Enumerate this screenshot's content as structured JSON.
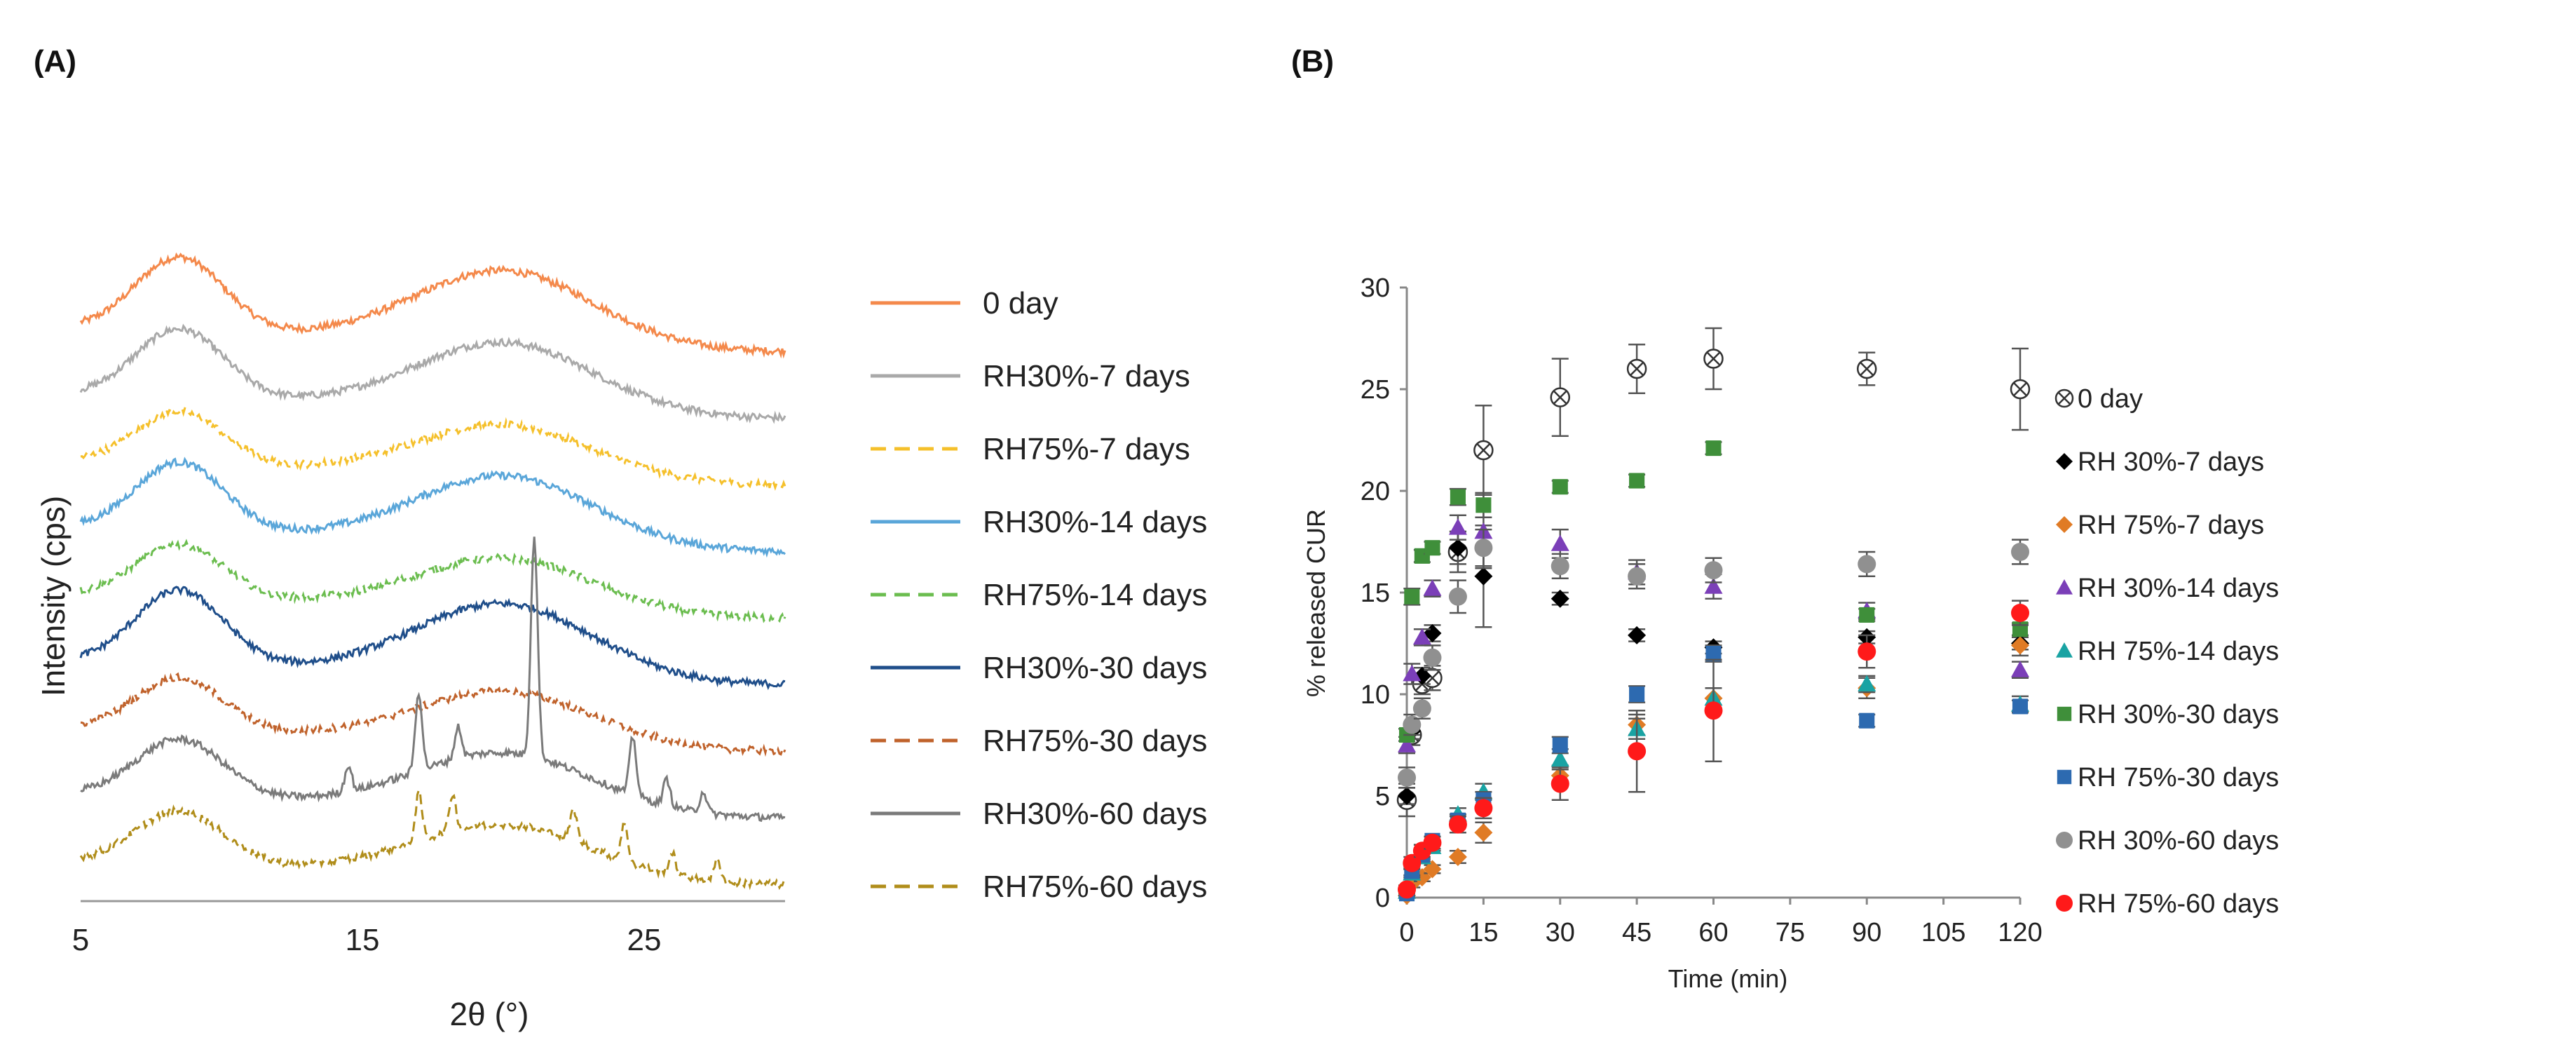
{
  "chart_data": [
    {
      "panel": "(A)",
      "type": "line",
      "title": "",
      "xlabel": "2θ (°)",
      "ylabel": "Intensity (cps)",
      "xlim": [
        5,
        30
      ],
      "x_ticks": [
        "5",
        "15",
        "25"
      ],
      "x_tick_values": [
        5,
        15,
        25
      ],
      "legend_position": "right",
      "series": [
        {
          "name": "0 day",
          "color": "#f4894b",
          "dash": "solid",
          "offset": 9,
          "amp": 0.75,
          "sharp_peaks": []
        },
        {
          "name": "RH30%-7 days",
          "color": "#a9a9a9",
          "dash": "solid",
          "offset": 8,
          "amp": 0.7,
          "sharp_peaks": []
        },
        {
          "name": "RH75%-7 days",
          "color": "#f5c02b",
          "dash": "dashed",
          "offset": 7,
          "amp": 0.55,
          "sharp_peaks": []
        },
        {
          "name": "RH30%-14 days",
          "color": "#5aa6d9",
          "dash": "solid",
          "offset": 6,
          "amp": 0.7,
          "sharp_peaks": []
        },
        {
          "name": "RH75%-14 days",
          "color": "#6bbd4f",
          "dash": "dashed",
          "offset": 5,
          "amp": 0.55,
          "sharp_peaks": []
        },
        {
          "name": "RH30%-30 days",
          "color": "#1f4e8a",
          "dash": "solid",
          "offset": 4,
          "amp": 0.75,
          "sharp_peaks": []
        },
        {
          "name": "RH75%-30 days",
          "color": "#c0622b",
          "dash": "dashed",
          "offset": 3,
          "amp": 0.55,
          "sharp_peaks": []
        },
        {
          "name": "RH30%-60 days",
          "color": "#7a7a7a",
          "dash": "solid",
          "offset": 2,
          "amp": 0.6,
          "sharp_peaks": [
            [
              14.5,
              0.25
            ],
            [
              17.0,
              0.75
            ],
            [
              18.4,
              0.3
            ],
            [
              21.1,
              2.1
            ],
            [
              24.6,
              0.55
            ],
            [
              25.8,
              0.25
            ],
            [
              27.1,
              0.2
            ]
          ]
        },
        {
          "name": "RH75%-60 days",
          "color": "#b08d1a",
          "dash": "dashed",
          "offset": 1,
          "amp": 0.55,
          "sharp_peaks": [
            [
              17.0,
              0.45
            ],
            [
              18.2,
              0.35
            ],
            [
              22.5,
              0.3
            ],
            [
              24.3,
              0.35
            ],
            [
              26.0,
              0.2
            ],
            [
              27.6,
              0.2
            ]
          ]
        }
      ]
    },
    {
      "panel": "(B)",
      "type": "scatter",
      "title": "",
      "xlabel": "Time (min)",
      "ylabel": "% released CUR",
      "xlim": [
        0,
        120
      ],
      "ylim": [
        0,
        30
      ],
      "x_ticks": [
        0,
        15,
        30,
        45,
        60,
        75,
        90,
        105,
        120
      ],
      "y_ticks": [
        0,
        5,
        10,
        15,
        20,
        25,
        30
      ],
      "grid": false,
      "legend_position": "right",
      "x": [
        0,
        1,
        3,
        5,
        10,
        15,
        30,
        45,
        60,
        90,
        120
      ],
      "series": [
        {
          "name": "0 day",
          "marker": "crossed-circle",
          "color": "#333333",
          "values": [
            4.8,
            8.0,
            10.5,
            10.8,
            17.0,
            22.0,
            24.6,
            26.0,
            26.5,
            26.0,
            25.0
          ],
          "errors": [
            0.8,
            0.5,
            0.5,
            0.6,
            1.0,
            2.2,
            1.9,
            1.2,
            1.5,
            0.8,
            2.0
          ]
        },
        {
          "name": "RH 30%-7 days",
          "marker": "diamond",
          "color": "#000000",
          "values": [
            5.0,
            8.2,
            10.9,
            13.0,
            17.2,
            15.8,
            14.7,
            12.9,
            12.3,
            12.8,
            12.5
          ],
          "errors": [
            0.4,
            0.4,
            0.4,
            0.4,
            0.8,
            2.5,
            0.3,
            0.3,
            0.3,
            0.3,
            0.3
          ]
        },
        {
          "name": "RH 75%-7 days",
          "marker": "diamond",
          "color": "#e07b25",
          "values": [
            0.1,
            0.7,
            1.0,
            1.4,
            2.0,
            3.2,
            6.0,
            8.5,
            9.8,
            10.3,
            12.4
          ],
          "errors": [
            0.1,
            0.2,
            0.2,
            0.2,
            0.3,
            0.5,
            0.5,
            0.5,
            0.5,
            0.5,
            0.5
          ]
        },
        {
          "name": "RH 30%-14 days",
          "marker": "triangle",
          "color": "#7b3fb8",
          "values": [
            7.5,
            11.0,
            12.8,
            15.2,
            18.2,
            18.0,
            17.4,
            16.0,
            15.3,
            14.1,
            11.2
          ],
          "errors": [
            0.4,
            0.5,
            0.4,
            0.4,
            0.6,
            1.8,
            0.7,
            0.6,
            0.6,
            0.4,
            0.4
          ]
        },
        {
          "name": "RH 75%-14 days",
          "marker": "triangle",
          "color": "#19a3a3",
          "values": [
            0.3,
            1.2,
            2.0,
            2.5,
            4.1,
            5.2,
            6.8,
            8.3,
            9.8,
            10.5,
            9.5
          ],
          "errors": [
            0.1,
            0.2,
            0.2,
            0.2,
            0.3,
            0.4,
            0.5,
            0.5,
            0.5,
            0.4,
            0.4
          ]
        },
        {
          "name": "RH 30%-30 days",
          "marker": "square",
          "color": "#3f8f3a",
          "values": [
            8.0,
            14.8,
            16.8,
            17.2,
            19.7,
            19.3,
            20.2,
            20.5,
            22.1,
            13.9,
            13.2
          ],
          "errors": [
            0.3,
            0.4,
            0.3,
            0.3,
            0.4,
            0.6,
            0.3,
            0.3,
            0.3,
            0.3,
            0.3
          ]
        },
        {
          "name": "RH 75%-30 days",
          "marker": "square",
          "color": "#2d6ab0",
          "values": [
            0.2,
            1.3,
            2.1,
            2.8,
            3.8,
            4.8,
            7.5,
            10.0,
            12.0,
            8.7,
            9.4
          ],
          "errors": [
            0.1,
            0.2,
            0.2,
            0.2,
            0.3,
            0.4,
            0.4,
            0.4,
            0.4,
            0.3,
            0.3
          ]
        },
        {
          "name": "RH 30%-60 days",
          "marker": "circle",
          "color": "#909090",
          "values": [
            5.9,
            8.5,
            9.3,
            11.8,
            14.8,
            17.2,
            16.3,
            15.8,
            16.1,
            16.4,
            17.0
          ],
          "errors": [
            0.5,
            0.5,
            0.5,
            0.6,
            0.8,
            0.9,
            0.6,
            0.6,
            0.6,
            0.6,
            0.6
          ]
        },
        {
          "name": "RH 75%-60 days",
          "marker": "circle",
          "color": "#ff1a1a",
          "values": [
            0.4,
            1.7,
            2.3,
            2.7,
            3.6,
            4.4,
            5.6,
            7.2,
            9.2,
            12.1,
            14.0
          ],
          "errors": [
            0.2,
            0.3,
            0.3,
            0.3,
            0.4,
            0.5,
            0.8,
            2.0,
            2.5,
            0.8,
            0.6
          ]
        }
      ]
    }
  ]
}
